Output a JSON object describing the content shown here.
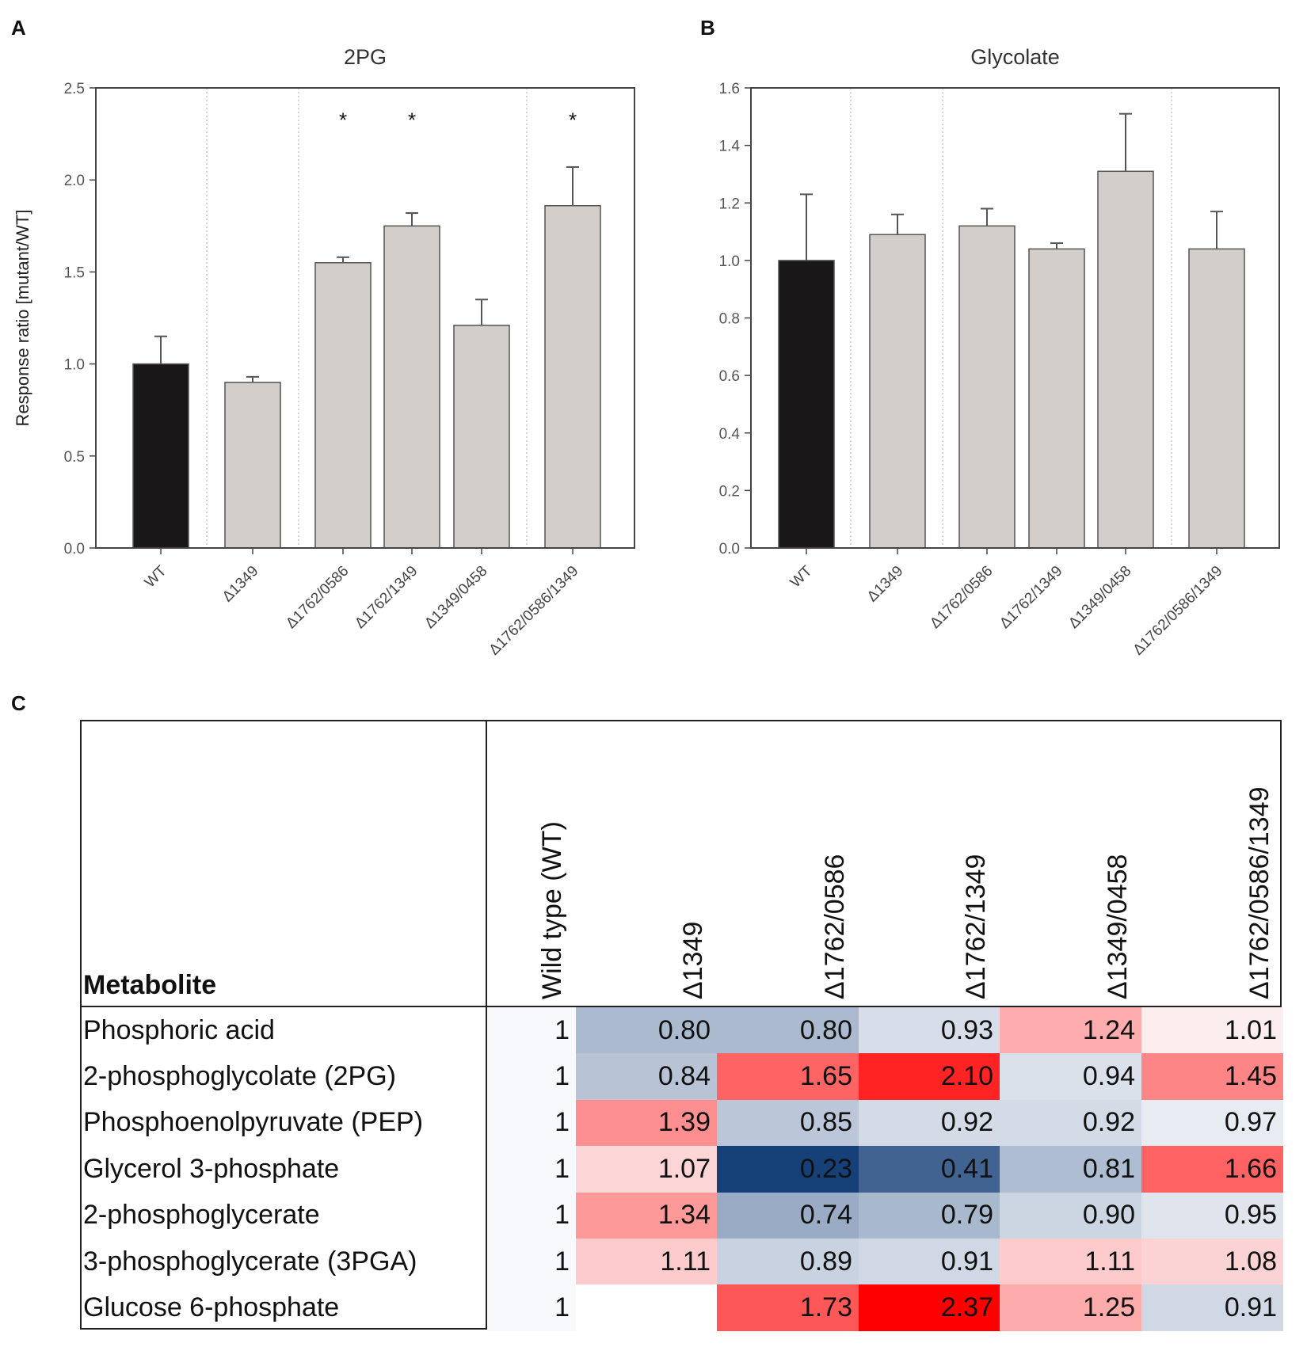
{
  "panels": {
    "a": "A",
    "b": "B",
    "c": "C"
  },
  "chart_data": [
    {
      "type": "bar",
      "title": "2PG",
      "xlabel": "",
      "ylabel": "Response ratio [mutant/WT]",
      "ylim": [
        0,
        2.5
      ],
      "yticks": [
        "0.0",
        "0.5",
        "1.0",
        "1.5",
        "2.0",
        "2.5"
      ],
      "categories": [
        "WT",
        "Δ1349",
        "Δ1762/0586",
        "Δ1762/1349",
        "Δ1349/0458",
        "Δ1762/0586/1349"
      ],
      "values": [
        1.0,
        0.9,
        1.55,
        1.75,
        1.21,
        1.86
      ],
      "error_upper": [
        1.15,
        0.93,
        1.58,
        1.82,
        1.35,
        2.07
      ],
      "significance": [
        "",
        "",
        "*",
        "*",
        "",
        "*"
      ],
      "colors": [
        "#1a1718",
        "#d3ceca",
        "#d3ceca",
        "#d3ceca",
        "#d3ceca",
        "#d3ceca"
      ]
    },
    {
      "type": "bar",
      "title": "Glycolate",
      "xlabel": "",
      "ylabel": "",
      "ylim": [
        0,
        1.6
      ],
      "yticks": [
        "0.0",
        "0.2",
        "0.4",
        "0.6",
        "0.8",
        "1.0",
        "1.2",
        "1.4",
        "1.6"
      ],
      "categories": [
        "WT",
        "Δ1349",
        "Δ1762/0586",
        "Δ1762/1349",
        "Δ1349/0458",
        "Δ1762/0586/1349"
      ],
      "values": [
        1.0,
        1.09,
        1.12,
        1.04,
        1.31,
        1.04
      ],
      "error_upper": [
        1.23,
        1.16,
        1.18,
        1.06,
        1.51,
        1.17
      ],
      "significance": [
        "",
        "",
        "",
        "",
        "",
        ""
      ],
      "colors": [
        "#1a1718",
        "#d3ceca",
        "#d3ceca",
        "#d3ceca",
        "#d3ceca",
        "#d3ceca"
      ]
    },
    {
      "type": "heatmap",
      "header": "Metabolite",
      "columns": [
        "Wild type (WT)",
        "Δ1349",
        "Δ1762/0586",
        "Δ1762/1349",
        "Δ1349/0458",
        "Δ1762/0586/1349"
      ],
      "rows": [
        {
          "name": "Phosphoric acid",
          "values": [
            "1",
            "0.80",
            "0.80",
            "0.93",
            "1.24",
            "1.01"
          ]
        },
        {
          "name": "2-phosphoglycolate  (2PG)",
          "values": [
            "1",
            "0.84",
            "1.65",
            "2.10",
            "0.94",
            "1.45"
          ]
        },
        {
          "name": "Phosphoenolpyruvate  (PEP)",
          "values": [
            "1",
            "1.39",
            "0.85",
            "0.92",
            "0.92",
            "0.97"
          ]
        },
        {
          "name": "Glycerol 3-phosphate",
          "values": [
            "1",
            "1.07",
            "0.23",
            "0.41",
            "0.81",
            "1.66"
          ]
        },
        {
          "name": "2-phosphoglycerate",
          "values": [
            "1",
            "1.34",
            "0.74",
            "0.79",
            "0.90",
            "0.95"
          ]
        },
        {
          "name": "3-phosphoglycerate (3PGA)",
          "values": [
            "1",
            "1.11",
            "0.89",
            "0.91",
            "1.11",
            "1.08"
          ]
        },
        {
          "name": "Glucose 6-phosphate",
          "values": [
            "1",
            "",
            "1.73",
            "2.37",
            "1.25",
            "0.91"
          ]
        }
      ]
    }
  ]
}
